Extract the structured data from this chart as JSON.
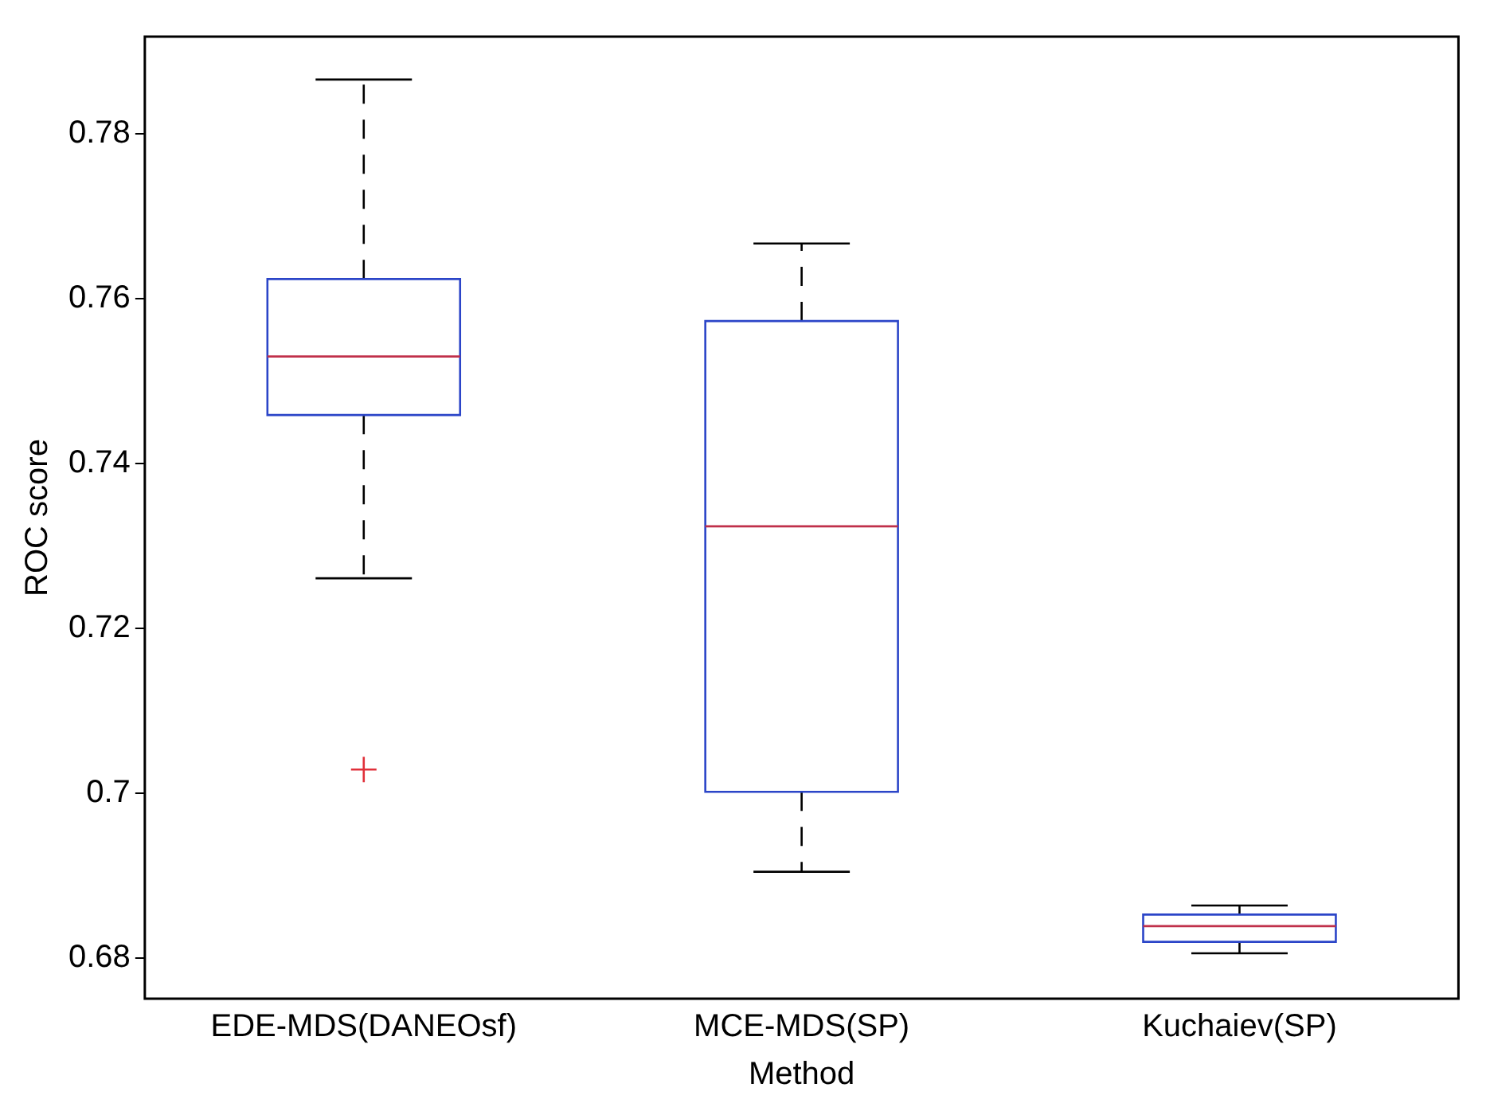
{
  "chart_data": {
    "type": "box",
    "xlabel": "Method",
    "ylabel": "ROC score",
    "categories": [
      "EDE-MDS(DANEOsf)",
      "MCE-MDS(SP)",
      "Kuchaiev(SP)"
    ],
    "color": "#2b45c8",
    "ylim": [
      0.6751,
      0.7918
    ],
    "yticks": [
      0.68,
      0.7,
      0.72,
      0.74,
      0.76,
      0.78
    ],
    "grid": false,
    "legend": false,
    "boxes": [
      {
        "low": 0.7261,
        "q1": 0.7459,
        "median": 0.753,
        "q3": 0.7624,
        "high": 0.7866,
        "outliers": [
          0.7029
        ]
      },
      {
        "low": 0.6905,
        "q1": 0.7002,
        "median": 0.7324,
        "q3": 0.7573,
        "high": 0.7667
      },
      {
        "low": 0.6806,
        "q1": 0.682,
        "median": 0.6839,
        "q3": 0.6853,
        "high": 0.6864
      }
    ]
  }
}
